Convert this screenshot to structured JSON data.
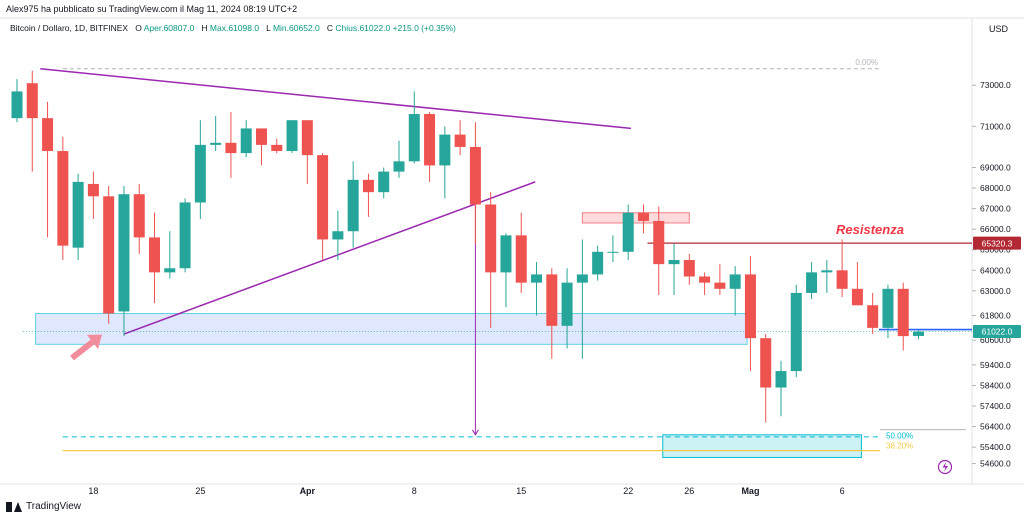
{
  "header": {
    "published_by": "Alex975 ha pubblicato su TradingView.com il Mag 11, 2024 08:19 UTC+2",
    "symbol": "Bitcoin / Dollaro, 1D, BITFINEX",
    "open_label": "O",
    "open_value": "Aper.60807.0",
    "high_label": "H",
    "high_value": "Max.61098.0",
    "low_label": "L",
    "low_value": "Min.60652.0",
    "close_label": "C",
    "close_value": "Chius.61022.0",
    "change_value": "+215.0 (+0.35%)"
  },
  "footer": {
    "brand": "TradingView"
  },
  "colors": {
    "up": "#26a69a",
    "down": "#ef5350",
    "trendline": "#9c27b0",
    "support_zone": "#2962ff",
    "target_zone": "#00bcd4",
    "resistance_zone": "#f23645",
    "resistance_line": "#b22833",
    "fib_50": "#00bcd4",
    "fib_382": "#f7c948",
    "price_line": "#2962ff"
  },
  "chart_data": {
    "type": "candlestick",
    "currency_label": "USD",
    "x_tick_labels": [
      "18",
      "25",
      "Apr",
      "8",
      "15",
      "22",
      "26",
      "Mag",
      "6"
    ],
    "y_tick_labels": [
      "73000.0",
      "71000.0",
      "69000.0",
      "68000.0",
      "67000.0",
      "66000.0",
      "65000.0",
      "64000.0",
      "63000.0",
      "61800.0",
      "60600.0",
      "59400.0",
      "58400.0",
      "57400.0",
      "56400.0",
      "55400.0",
      "54600.0"
    ],
    "y_ticks": [
      73000,
      71000,
      69000,
      68000,
      67000,
      66000,
      65000,
      64000,
      63000,
      61800,
      60600,
      59400,
      58400,
      57400,
      56400,
      55400,
      54600
    ],
    "ylim": [
      53900,
      75200
    ],
    "candles": [
      {
        "date": "2024-03-13",
        "o": 71400,
        "h": 73300,
        "l": 71200,
        "c": 72700
      },
      {
        "date": "2024-03-14",
        "o": 73100,
        "h": 73700,
        "l": 68800,
        "c": 71400
      },
      {
        "date": "2024-03-15",
        "o": 71400,
        "h": 72200,
        "l": 65600,
        "c": 69800
      },
      {
        "date": "2024-03-16",
        "o": 69800,
        "h": 70500,
        "l": 64500,
        "c": 65200
      },
      {
        "date": "2024-03-17",
        "o": 65100,
        "h": 68700,
        "l": 64500,
        "c": 68300
      },
      {
        "date": "2024-03-18",
        "o": 68200,
        "h": 68800,
        "l": 66500,
        "c": 67600
      },
      {
        "date": "2024-03-19",
        "o": 67600,
        "h": 68100,
        "l": 61400,
        "c": 61900
      },
      {
        "date": "2024-03-20",
        "o": 62000,
        "h": 68100,
        "l": 60800,
        "c": 67700
      },
      {
        "date": "2024-03-21",
        "o": 67700,
        "h": 68200,
        "l": 64800,
        "c": 65600
      },
      {
        "date": "2024-03-22",
        "o": 65600,
        "h": 66800,
        "l": 62400,
        "c": 63900
      },
      {
        "date": "2024-03-23",
        "o": 63900,
        "h": 65900,
        "l": 63600,
        "c": 64100
      },
      {
        "date": "2024-03-24",
        "o": 64100,
        "h": 67500,
        "l": 63900,
        "c": 67300
      },
      {
        "date": "2024-03-25",
        "o": 67300,
        "h": 71300,
        "l": 66500,
        "c": 70100
      },
      {
        "date": "2024-03-26",
        "o": 70100,
        "h": 71500,
        "l": 69800,
        "c": 70200
      },
      {
        "date": "2024-03-27",
        "o": 70200,
        "h": 71700,
        "l": 68500,
        "c": 69700
      },
      {
        "date": "2024-03-28",
        "o": 69700,
        "h": 71300,
        "l": 69500,
        "c": 70900
      },
      {
        "date": "2024-03-29",
        "o": 70900,
        "h": 70900,
        "l": 69100,
        "c": 70100
      },
      {
        "date": "2024-03-30",
        "o": 70100,
        "h": 70400,
        "l": 69700,
        "c": 69800
      },
      {
        "date": "2024-03-31",
        "o": 69800,
        "h": 71300,
        "l": 69700,
        "c": 71300
      },
      {
        "date": "2024-04-01",
        "o": 71300,
        "h": 71300,
        "l": 68200,
        "c": 69600
      },
      {
        "date": "2024-04-02",
        "o": 69600,
        "h": 69700,
        "l": 64500,
        "c": 65500
      },
      {
        "date": "2024-04-03",
        "o": 65500,
        "h": 66900,
        "l": 64500,
        "c": 65900
      },
      {
        "date": "2024-04-04",
        "o": 65900,
        "h": 69300,
        "l": 65100,
        "c": 68400
      },
      {
        "date": "2024-04-05",
        "o": 68400,
        "h": 68700,
        "l": 66600,
        "c": 67800
      },
      {
        "date": "2024-04-06",
        "o": 67800,
        "h": 69000,
        "l": 67500,
        "c": 68800
      },
      {
        "date": "2024-04-07",
        "o": 68800,
        "h": 70300,
        "l": 68500,
        "c": 69300
      },
      {
        "date": "2024-04-08",
        "o": 69300,
        "h": 72700,
        "l": 69200,
        "c": 71600
      },
      {
        "date": "2024-04-09",
        "o": 71600,
        "h": 71700,
        "l": 68300,
        "c": 69100
      },
      {
        "date": "2024-04-10",
        "o": 69100,
        "h": 71000,
        "l": 67500,
        "c": 70600
      },
      {
        "date": "2024-04-11",
        "o": 70600,
        "h": 71300,
        "l": 69600,
        "c": 70000
      },
      {
        "date": "2024-04-12",
        "o": 70000,
        "h": 71200,
        "l": 65300,
        "c": 67200
      },
      {
        "date": "2024-04-13",
        "o": 67200,
        "h": 67800,
        "l": 61200,
        "c": 63900
      },
      {
        "date": "2024-04-14",
        "o": 63900,
        "h": 65800,
        "l": 62200,
        "c": 65700
      },
      {
        "date": "2024-04-15",
        "o": 65700,
        "h": 66800,
        "l": 62900,
        "c": 63400
      },
      {
        "date": "2024-04-16",
        "o": 63400,
        "h": 64400,
        "l": 61800,
        "c": 63800
      },
      {
        "date": "2024-04-17",
        "o": 63800,
        "h": 64100,
        "l": 59700,
        "c": 61300
      },
      {
        "date": "2024-04-18",
        "o": 61300,
        "h": 64100,
        "l": 60200,
        "c": 63400
      },
      {
        "date": "2024-04-19",
        "o": 63400,
        "h": 65500,
        "l": 59700,
        "c": 63800
      },
      {
        "date": "2024-04-20",
        "o": 63800,
        "h": 65200,
        "l": 63500,
        "c": 64900
      },
      {
        "date": "2024-04-21",
        "o": 64900,
        "h": 65700,
        "l": 64400,
        "c": 64900
      },
      {
        "date": "2024-04-22",
        "o": 64900,
        "h": 67200,
        "l": 64500,
        "c": 66800
      },
      {
        "date": "2024-04-23",
        "o": 66800,
        "h": 67200,
        "l": 65800,
        "c": 66400
      },
      {
        "date": "2024-04-24",
        "o": 66400,
        "h": 67100,
        "l": 62800,
        "c": 64300
      },
      {
        "date": "2024-04-25",
        "o": 64300,
        "h": 65300,
        "l": 62800,
        "c": 64500
      },
      {
        "date": "2024-04-26",
        "o": 64500,
        "h": 64800,
        "l": 63300,
        "c": 63700
      },
      {
        "date": "2024-04-27",
        "o": 63700,
        "h": 63900,
        "l": 62800,
        "c": 63400
      },
      {
        "date": "2024-04-28",
        "o": 63400,
        "h": 64300,
        "l": 62800,
        "c": 63100
      },
      {
        "date": "2024-04-29",
        "o": 63100,
        "h": 64200,
        "l": 61800,
        "c": 63800
      },
      {
        "date": "2024-04-30",
        "o": 63800,
        "h": 64700,
        "l": 59100,
        "c": 60700
      },
      {
        "date": "2024-05-01",
        "o": 60700,
        "h": 60900,
        "l": 56600,
        "c": 58300
      },
      {
        "date": "2024-05-02",
        "o": 58300,
        "h": 59600,
        "l": 56900,
        "c": 59100
      },
      {
        "date": "2024-05-03",
        "o": 59100,
        "h": 63300,
        "l": 58800,
        "c": 62900
      },
      {
        "date": "2024-05-04",
        "o": 62900,
        "h": 64400,
        "l": 62600,
        "c": 63900
      },
      {
        "date": "2024-05-05",
        "o": 63900,
        "h": 64500,
        "l": 62900,
        "c": 64000
      },
      {
        "date": "2024-05-06",
        "o": 64000,
        "h": 65500,
        "l": 62700,
        "c": 63100
      },
      {
        "date": "2024-05-07",
        "o": 63100,
        "h": 64400,
        "l": 62300,
        "c": 62300
      },
      {
        "date": "2024-05-08",
        "o": 62300,
        "h": 62900,
        "l": 60900,
        "c": 61200
      },
      {
        "date": "2024-05-09",
        "o": 61200,
        "h": 63300,
        "l": 60700,
        "c": 63100
      },
      {
        "date": "2024-05-10",
        "o": 63100,
        "h": 63400,
        "l": 60100,
        "c": 60800
      },
      {
        "date": "2024-05-11",
        "o": 60807,
        "h": 61098,
        "l": 60652,
        "c": 61022
      }
    ],
    "annotations": {
      "resistance_label": "Resistenza",
      "resistance_price": 65320.3,
      "resistance_price_label": "65320.3",
      "last_price": 61022,
      "last_price_label": "61022.0",
      "fib_0_label": "0.00%",
      "fib_0_price": 73800,
      "fib_50_label": "50.00%",
      "fib_50_price": 56250,
      "fib_382_label": "38.20%",
      "fib_382_price": 55230,
      "fib_50_marker_price": 55900,
      "descending_trendline": {
        "from": {
          "date": "2024-03-14",
          "price": 73800
        },
        "to": {
          "date": "2024-04-21",
          "price": 70900
        }
      },
      "ascending_trendline": {
        "from": {
          "date": "2024-03-20",
          "price": 60900
        },
        "to": {
          "date": "2024-04-15",
          "price": 68300
        }
      },
      "support_zone": {
        "from": "2024-03-15",
        "to": "2024-04-29",
        "high": 61900,
        "low": 60400
      },
      "resistance_zone": {
        "from": "2024-04-19",
        "to": "2024-04-26",
        "high": 66800,
        "low": 66300
      },
      "target_zone": {
        "from": "2024-04-24",
        "to": "2024-05-07",
        "high": 56000,
        "low": 54900
      },
      "projection": {
        "date": "2024-04-12",
        "from_price": 67200,
        "to_price": 56000
      }
    }
  }
}
